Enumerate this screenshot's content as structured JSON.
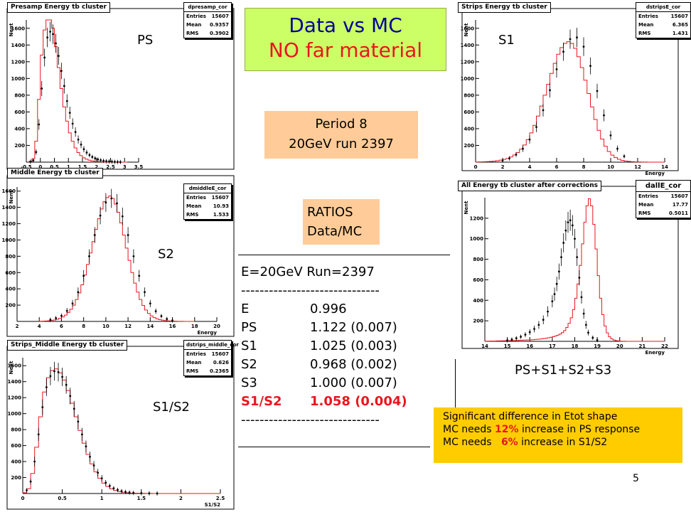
{
  "slide": {
    "title": "Data vs MC",
    "subtitle": "NO far material",
    "period_line1": "Period 8",
    "period_line2": "20GeV run 2397",
    "ratios_line1": "RATIOS",
    "ratios_line2": "Data/MC",
    "table_header": "E=20GeV Run=2397",
    "table_sep": "------------------------------",
    "table_rows": [
      {
        "name": "E",
        "value": "0.996"
      },
      {
        "name": "PS",
        "value": "1.122 (0.007)"
      },
      {
        "name": "S1",
        "value": "1.025 (0.003)"
      },
      {
        "name": "S2",
        "value": "0.968 (0.002)"
      },
      {
        "name": "S3",
        "value": "1.000 (0.007)"
      },
      {
        "name": "S1/S2",
        "value": "1.058 (0.004)"
      }
    ],
    "note_line1": "Significant difference in Etot shape",
    "note_line2_pre": "MC needs ",
    "note_line2_hl": "12%",
    "note_line2_post": " increase in PS response",
    "note_line3_pre": "MC needs   ",
    "note_line3_hl": "6%",
    "note_line3_post": " increase in S1/S2",
    "page_number": "5",
    "colors": {
      "title_box": "#ccff66",
      "info_box": "#ffcc99",
      "note_box": "#ffcc00",
      "highlight_red": "#e8161e",
      "title_blue": "#000099"
    }
  },
  "chart_data": [
    {
      "type": "histogram",
      "title": "Presamp Energy tb cluster",
      "label": "PS",
      "ylabel": "Nent",
      "xlabel": "",
      "stats": {
        "name": "dpresamp_cor",
        "entries_label": "Entries",
        "entries": "15607",
        "mean_label": "Mean",
        "mean": "0.9357",
        "rms_label": "RMS",
        "rms": "0.3902"
      },
      "xlim": [
        -0.5,
        3.5
      ],
      "ylim": [
        0,
        1700
      ],
      "xticks": [
        -0.5,
        0,
        0.5,
        1,
        1.5,
        2,
        2.5,
        3,
        3.5
      ],
      "xtick_labels": [
        "-0.5",
        "0",
        "0.5",
        "1",
        "1.5",
        "2",
        "2.5",
        "3",
        "3.5"
      ],
      "yticks": [
        200,
        400,
        600,
        800,
        1000,
        1200,
        1400,
        1600
      ],
      "ytick_labels": [
        "200",
        "400",
        "600",
        "800",
        "1000",
        "1200",
        "1400",
        "1600"
      ],
      "mc_bins": {
        "start": -0.4,
        "width": 0.1,
        "values": [
          10,
          40,
          250,
          750,
          1280,
          1580,
          1750,
          1750,
          1600,
          1380,
          1130,
          880,
          660,
          490,
          350,
          250,
          170,
          115,
          78,
          52,
          35,
          23,
          15,
          10,
          6,
          4,
          2,
          1,
          1,
          0,
          0,
          0,
          0,
          0,
          0
        ]
      },
      "data_points": {
        "x": [
          -0.35,
          -0.25,
          -0.15,
          -0.05,
          0.05,
          0.15,
          0.25,
          0.35,
          0.45,
          0.55,
          0.65,
          0.75,
          0.85,
          0.95,
          1.05,
          1.15,
          1.25,
          1.35,
          1.45,
          1.55,
          1.65,
          1.75,
          1.85,
          1.95,
          2.05,
          2.15,
          2.25,
          2.35,
          2.45,
          2.55,
          2.65,
          2.75,
          2.85
        ],
        "y": [
          5,
          20,
          120,
          450,
          880,
          1250,
          1490,
          1560,
          1530,
          1420,
          1270,
          1090,
          910,
          730,
          590,
          460,
          360,
          270,
          210,
          155,
          115,
          85,
          62,
          45,
          32,
          23,
          16,
          11,
          8,
          5,
          3,
          2,
          1
        ]
      }
    },
    {
      "type": "histogram",
      "title": "Middle Energy tb cluster",
      "label": "S2",
      "ylabel": "Nent",
      "xlabel": "Energy",
      "stats": {
        "name": "dmiddleE_cor",
        "entries_label": "Entries",
        "entries": "15607",
        "mean_label": "Mean",
        "mean": "10.93",
        "rms_label": "RMS",
        "rms": "1.533"
      },
      "xlim": [
        2,
        20
      ],
      "ylim": [
        0,
        1650
      ],
      "xticks": [
        2,
        4,
        6,
        8,
        10,
        12,
        14,
        16,
        18,
        20
      ],
      "xtick_labels": [
        "2",
        "4",
        "6",
        "8",
        "10",
        "12",
        "14",
        "16",
        "18",
        "20"
      ],
      "yticks": [
        200,
        400,
        600,
        800,
        1000,
        1200,
        1400,
        1600
      ],
      "ytick_labels": [
        "200",
        "400",
        "600",
        "800",
        "1000",
        "1200",
        "1400",
        "1600"
      ],
      "mc_bins": {
        "start": 4.0,
        "width": 0.25,
        "values": [
          2,
          3,
          5,
          8,
          12,
          18,
          26,
          38,
          55,
          78,
          110,
          150,
          200,
          270,
          350,
          450,
          570,
          700,
          840,
          980,
          1130,
          1260,
          1380,
          1470,
          1520,
          1540,
          1510,
          1440,
          1340,
          1210,
          1060,
          900,
          750,
          600,
          470,
          360,
          270,
          195,
          140,
          98,
          68,
          47,
          32,
          22,
          15,
          10,
          7,
          5,
          3,
          2,
          1,
          1,
          0,
          0,
          0,
          0
        ]
      },
      "data_points": {
        "x": [
          5.0,
          5.5,
          6.0,
          6.5,
          7.0,
          7.5,
          8.0,
          8.5,
          9.0,
          9.5,
          10.0,
          10.5,
          11.0,
          11.5,
          12.0,
          12.5,
          13.0,
          13.5,
          14.0,
          14.5,
          15.0,
          15.5,
          16.0
        ],
        "y": [
          20,
          40,
          70,
          130,
          220,
          360,
          560,
          800,
          1060,
          1300,
          1460,
          1510,
          1450,
          1290,
          1060,
          800,
          560,
          360,
          220,
          125,
          65,
          30,
          12
        ]
      }
    },
    {
      "type": "histogram",
      "title": "Strips_Middle Energy tb cluster",
      "label": "S1/S2",
      "ylabel": "Nent",
      "xlabel": "S1/S2",
      "stats": {
        "name": "dstrips_middle_cor",
        "entries_label": "Entries",
        "entries": "15607",
        "mean_label": "Mean",
        "mean": "0.626",
        "rms_label": "RMS",
        "rms": "0.2365"
      },
      "xlim": [
        0,
        2.5
      ],
      "ylim": [
        0,
        1700
      ],
      "xticks": [
        0,
        0.5,
        1,
        1.5,
        2,
        2.5
      ],
      "xtick_labels": [
        "0",
        "0.5",
        "1",
        "1.5",
        "2",
        "2.5"
      ],
      "yticks": [
        200,
        400,
        600,
        800,
        1000,
        1200,
        1400,
        1600
      ],
      "ytick_labels": [
        "200",
        "400",
        "600",
        "800",
        "1000",
        "1200",
        "1400",
        "1600"
      ],
      "mc_bins": {
        "start": 0.0,
        "width": 0.05,
        "values": [
          10,
          60,
          250,
          580,
          960,
          1270,
          1450,
          1540,
          1560,
          1510,
          1420,
          1290,
          1130,
          960,
          790,
          630,
          490,
          370,
          270,
          190,
          130,
          88,
          58,
          38,
          25,
          16,
          10,
          6,
          4,
          3,
          2,
          1,
          1,
          0,
          0,
          0,
          0,
          0,
          0,
          0,
          0,
          0,
          0,
          0,
          0,
          0,
          0,
          0,
          0,
          0
        ]
      },
      "data_points": {
        "x": [
          0.05,
          0.1,
          0.15,
          0.2,
          0.25,
          0.3,
          0.35,
          0.4,
          0.45,
          0.5,
          0.55,
          0.6,
          0.65,
          0.7,
          0.75,
          0.8,
          0.85,
          0.9,
          0.95,
          1.0,
          1.05,
          1.1,
          1.15,
          1.2,
          1.25,
          1.3,
          1.35,
          1.4,
          1.5,
          1.6,
          1.7
        ],
        "y": [
          40,
          150,
          400,
          740,
          1080,
          1330,
          1470,
          1530,
          1520,
          1460,
          1360,
          1220,
          1060,
          900,
          740,
          590,
          460,
          350,
          260,
          190,
          135,
          95,
          65,
          45,
          30,
          20,
          13,
          8,
          4,
          2,
          1
        ]
      }
    },
    {
      "type": "histogram",
      "title": "Strips Energy tb cluster",
      "label": "S1",
      "ylabel": "Nent",
      "xlabel": "Energy",
      "stats": {
        "name": "dstripsE_cor",
        "entries_label": "Entries",
        "entries": "15607",
        "mean_label": "Mean",
        "mean": "6.365",
        "rms_label": "RMS",
        "rms": "1.431"
      },
      "xlim": [
        0,
        14
      ],
      "ylim": [
        0,
        1700
      ],
      "xticks": [
        0,
        2,
        4,
        6,
        8,
        10,
        12,
        14
      ],
      "xtick_labels": [
        "0",
        "2",
        "4",
        "6",
        "8",
        "10",
        "12",
        "14"
      ],
      "yticks": [
        200,
        400,
        600,
        800,
        1000,
        1200,
        1400,
        1600
      ],
      "ytick_labels": [
        "200",
        "400",
        "600",
        "800",
        "1000",
        "1200",
        "1400",
        "1600"
      ],
      "mc_bins": {
        "start": 0.0,
        "width": 0.25,
        "values": [
          2,
          3,
          4,
          6,
          9,
          12,
          17,
          24,
          33,
          45,
          62,
          85,
          115,
          155,
          205,
          270,
          350,
          440,
          550,
          670,
          800,
          930,
          1060,
          1180,
          1290,
          1370,
          1420,
          1440,
          1420,
          1360,
          1260,
          1130,
          980,
          820,
          660,
          510,
          380,
          275,
          190,
          128,
          84,
          54,
          34,
          21,
          13,
          8,
          5,
          3,
          2,
          1,
          1,
          0,
          0,
          0,
          0,
          0
        ]
      },
      "data_points": {
        "x": [
          2.0,
          2.5,
          3.0,
          3.5,
          4.0,
          4.5,
          5.0,
          5.5,
          6.0,
          6.5,
          7.0,
          7.5,
          8.0,
          8.5,
          9.0,
          9.5,
          10.0,
          10.5,
          11.0
        ],
        "y": [
          20,
          45,
          90,
          160,
          270,
          420,
          620,
          860,
          1110,
          1320,
          1470,
          1490,
          1380,
          1150,
          850,
          560,
          320,
          160,
          70
        ]
      }
    },
    {
      "type": "histogram",
      "title": "All Energy tb cluster after corrections",
      "label": "PS+S1+S2+S3",
      "ylabel": "Nent",
      "xlabel": "Energy",
      "stats": {
        "name": "dallE_cor",
        "entries_label": "Entries",
        "entries": "15607",
        "mean_label": "Mean",
        "mean": "17.77",
        "rms_label": "RMS",
        "rms": "0.5011"
      },
      "xlim": [
        14,
        22
      ],
      "ylim": [
        0,
        1400
      ],
      "xticks": [
        14,
        15,
        16,
        17,
        18,
        19,
        20,
        21,
        22
      ],
      "xtick_labels": [
        "14",
        "15",
        "16",
        "17",
        "18",
        "19",
        "20",
        "21",
        "22"
      ],
      "yticks": [
        200,
        400,
        600,
        800,
        1000,
        1200
      ],
      "ytick_labels": [
        "200",
        "400",
        "600",
        "800",
        "1000",
        "1200"
      ],
      "mc_bins": {
        "start": 14.0,
        "width": 0.1,
        "values": [
          2,
          2,
          3,
          3,
          3,
          4,
          4,
          5,
          5,
          6,
          6,
          7,
          8,
          8,
          9,
          10,
          11,
          12,
          13,
          14,
          15,
          16,
          18,
          20,
          22,
          25,
          28,
          31,
          35,
          40,
          45,
          52,
          60,
          70,
          85,
          105,
          135,
          175,
          230,
          310,
          420,
          560,
          740,
          950,
          1160,
          1320,
          1390,
          1320,
          1140,
          900,
          640,
          420,
          260,
          150,
          82,
          44,
          24,
          13,
          7,
          4,
          2,
          1,
          1,
          0,
          0,
          0,
          0,
          0,
          0,
          0,
          0,
          0,
          0,
          0,
          0,
          0,
          0,
          0,
          0,
          0
        ]
      },
      "data_points": {
        "x": [
          15.0,
          15.2,
          15.4,
          15.6,
          15.8,
          16.0,
          16.2,
          16.4,
          16.6,
          16.8,
          17.0,
          17.1,
          17.2,
          17.3,
          17.4,
          17.5,
          17.6,
          17.7,
          17.8,
          17.9,
          18.0,
          18.1,
          18.2,
          18.3,
          18.4,
          18.5,
          18.6,
          18.8,
          19.0
        ],
        "y": [
          10,
          18,
          30,
          45,
          65,
          90,
          120,
          160,
          210,
          290,
          390,
          460,
          560,
          680,
          820,
          960,
          1080,
          1160,
          1180,
          1130,
          1000,
          820,
          620,
          430,
          270,
          160,
          85,
          35,
          12
        ]
      }
    }
  ]
}
